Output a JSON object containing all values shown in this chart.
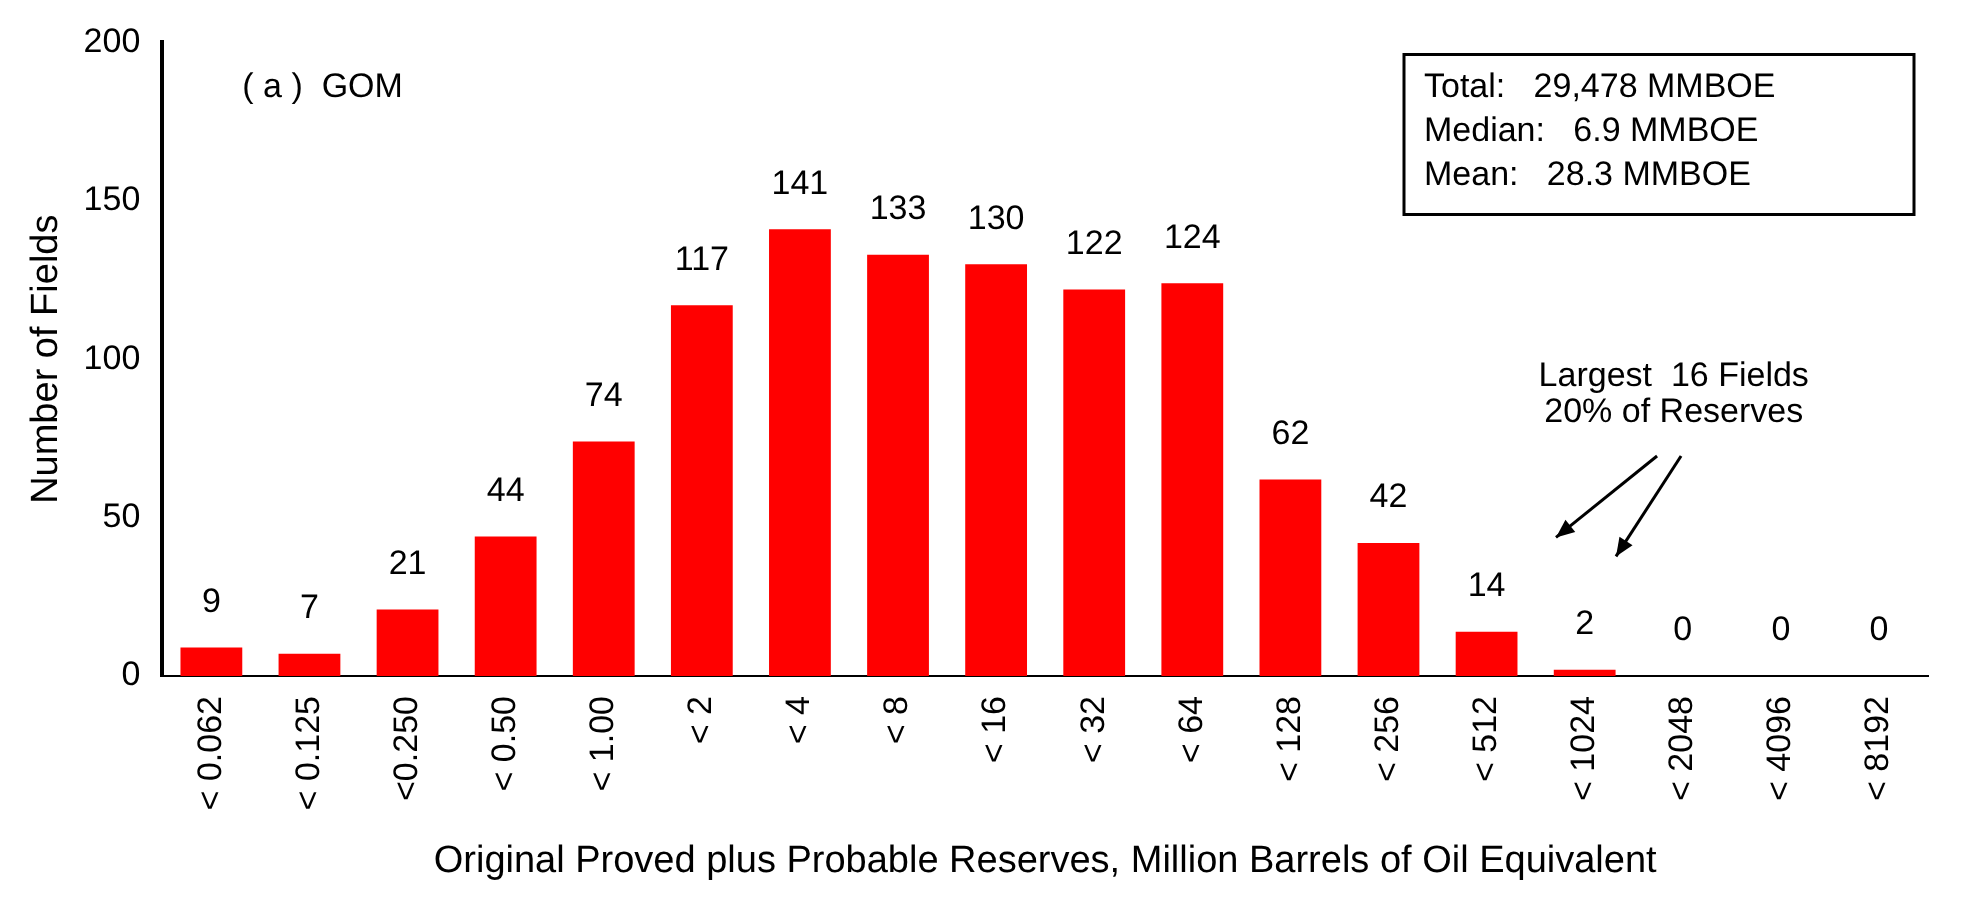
{
  "chart_data": {
    "type": "bar",
    "xlabel": "Original Proved plus Probable Reserves, Million Barrels of Oil Equivalent",
    "ylabel": "Number of Fields",
    "categories": [
      "< 0.062",
      "< 0.125",
      "<0.250",
      "< 0.50",
      "< 1.00",
      "< 2",
      "< 4",
      "< 8",
      "< 16",
      "< 32",
      "< 64",
      "< 128",
      "< 256",
      "< 512",
      "< 1024",
      "< 2048",
      "< 4096",
      "< 8192"
    ],
    "values": [
      9,
      7,
      21,
      44,
      74,
      117,
      141,
      133,
      130,
      122,
      124,
      62,
      42,
      14,
      2,
      0,
      0,
      0
    ],
    "color": "#ff0000",
    "ylim": [
      0,
      200
    ],
    "yticks": [
      0,
      50,
      100,
      150,
      200
    ],
    "grid": false,
    "legend": false,
    "data_labels": true,
    "annotations": [
      "( a )  GOM",
      "Total:   29,478 MMBOE",
      "Median:   6.9 MMBOE",
      "Mean:   28.3 MMBOE",
      "Largest  16 Fields",
      "20% of Reserves"
    ]
  }
}
